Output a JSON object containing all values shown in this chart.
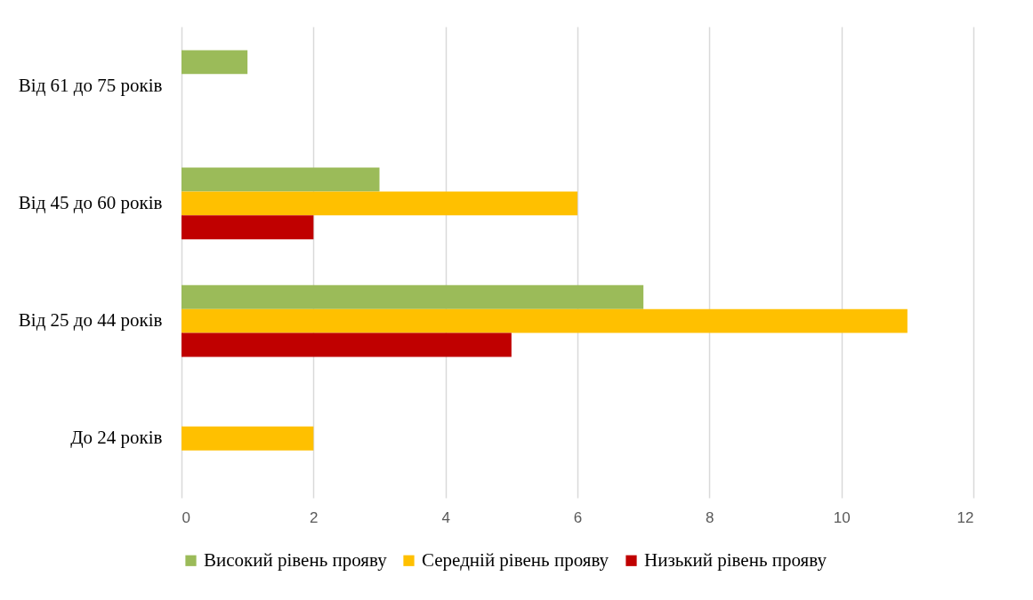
{
  "chart_data": {
    "type": "bar",
    "orientation": "horizontal",
    "categories": [
      "Від 61 до 75 років",
      "Від 45 до 60 років",
      "Від 25 до 44 років",
      "До 24 років"
    ],
    "series": [
      {
        "name": "Високий рівень прояву",
        "color": "#9bbb59",
        "values": [
          1,
          3,
          7,
          null
        ]
      },
      {
        "name": "Середній рівень прояву",
        "color": "#ffc000",
        "values": [
          null,
          6,
          11,
          2
        ]
      },
      {
        "name": "Низький рівень прояву",
        "color": "#c00000",
        "values": [
          null,
          2,
          5,
          null
        ]
      }
    ],
    "xlim": [
      0,
      12
    ],
    "xticks": [
      0,
      2,
      4,
      6,
      8,
      10,
      12
    ],
    "grid": "x",
    "legend": "bottom"
  }
}
